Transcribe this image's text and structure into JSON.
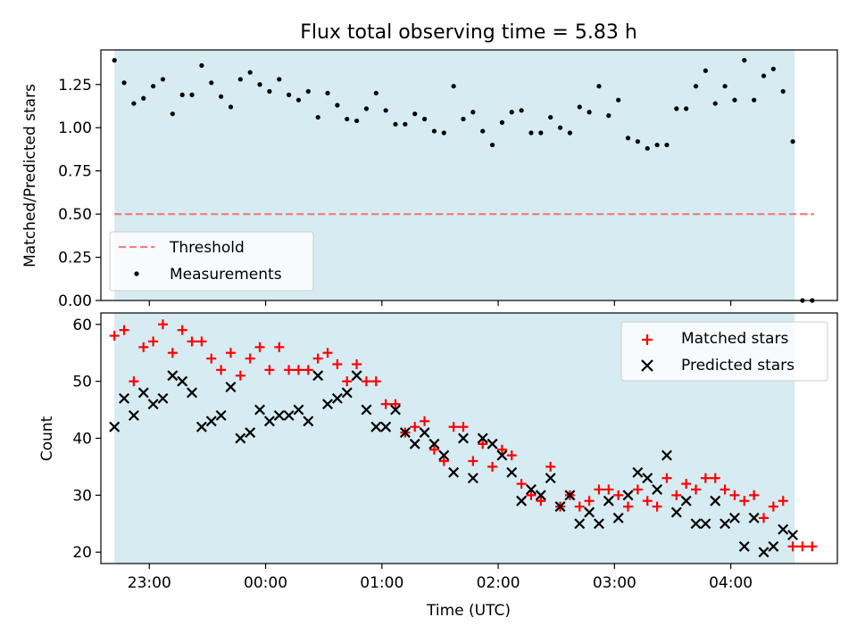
{
  "title": "Flux total observing time = 5.83 h",
  "chart_data": [
    {
      "type": "scatter",
      "ylabel": "Matched/Predicted stars",
      "xlabel": "",
      "xlim": [
        "22:35",
        "04:55"
      ],
      "ylim": [
        0,
        1.45
      ],
      "yticks": [
        "0.00",
        "0.25",
        "0.50",
        "0.75",
        "1.00",
        "1.25"
      ],
      "shaded_interval": [
        "22:42",
        "04:33"
      ],
      "threshold": {
        "name": "Threshold",
        "y": 0.5,
        "x_start": "22:42",
        "x_end": "04:43",
        "color": "#f28080"
      },
      "legend_position": "lower-left",
      "series": [
        {
          "name": "Measurements",
          "marker": "dot",
          "color": "#000000",
          "x": [
            "22:42",
            "22:47",
            "22:52",
            "22:57",
            "23:02",
            "23:07",
            "23:12",
            "23:17",
            "23:22",
            "23:27",
            "23:32",
            "23:37",
            "23:42",
            "23:47",
            "23:52",
            "23:57",
            "00:02",
            "00:07",
            "00:12",
            "00:17",
            "00:22",
            "00:27",
            "00:32",
            "00:37",
            "00:42",
            "00:47",
            "00:52",
            "00:57",
            "01:02",
            "01:07",
            "01:12",
            "01:17",
            "01:22",
            "01:27",
            "01:32",
            "01:37",
            "01:42",
            "01:47",
            "01:52",
            "01:57",
            "02:02",
            "02:07",
            "02:12",
            "02:17",
            "02:22",
            "02:27",
            "02:32",
            "02:37",
            "02:42",
            "02:47",
            "02:52",
            "02:57",
            "03:02",
            "03:07",
            "03:12",
            "03:17",
            "03:22",
            "03:27",
            "03:32",
            "03:37",
            "03:42",
            "03:47",
            "03:52",
            "03:57",
            "04:02",
            "04:07",
            "04:12",
            "04:17",
            "04:22",
            "04:27",
            "04:32",
            "04:37",
            "04:42"
          ],
          "y": [
            1.39,
            1.26,
            1.14,
            1.17,
            1.24,
            1.28,
            1.08,
            1.19,
            1.19,
            1.36,
            1.26,
            1.18,
            1.12,
            1.28,
            1.32,
            1.25,
            1.21,
            1.28,
            1.19,
            1.16,
            1.21,
            1.06,
            1.2,
            1.13,
            1.05,
            1.04,
            1.11,
            1.2,
            1.1,
            1.02,
            1.02,
            1.08,
            1.05,
            0.98,
            0.97,
            1.24,
            1.05,
            1.09,
            0.98,
            0.9,
            1.03,
            1.09,
            1.1,
            0.97,
            0.97,
            1.06,
            1.0,
            0.97,
            1.12,
            1.09,
            1.24,
            1.07,
            1.16,
            0.94,
            0.92,
            0.88,
            0.9,
            0.9,
            1.11,
            1.11,
            1.24,
            1.33,
            1.14,
            1.24,
            1.16,
            1.39,
            1.16,
            1.3,
            1.34,
            1.21,
            0.92,
            0.0,
            0.0
          ]
        }
      ]
    },
    {
      "type": "scatter",
      "ylabel": "Count",
      "xlabel": "Time (UTC)",
      "xlim": [
        "22:35",
        "04:55"
      ],
      "ylim": [
        18,
        62
      ],
      "yticks": [
        "20",
        "30",
        "40",
        "50",
        "60"
      ],
      "xticks": [
        "23:00",
        "00:00",
        "01:00",
        "02:00",
        "03:00",
        "04:00"
      ],
      "shaded_interval": [
        "22:42",
        "04:33"
      ],
      "legend_position": "upper-right",
      "series": [
        {
          "name": "Matched stars",
          "marker": "plus",
          "color": "#ff0000",
          "x": [
            "22:42",
            "22:47",
            "22:52",
            "22:57",
            "23:02",
            "23:07",
            "23:12",
            "23:17",
            "23:22",
            "23:27",
            "23:32",
            "23:37",
            "23:42",
            "23:47",
            "23:52",
            "23:57",
            "00:02",
            "00:07",
            "00:12",
            "00:17",
            "00:22",
            "00:27",
            "00:32",
            "00:37",
            "00:42",
            "00:47",
            "00:52",
            "00:57",
            "01:02",
            "01:07",
            "01:12",
            "01:17",
            "01:22",
            "01:27",
            "01:32",
            "01:37",
            "01:42",
            "01:47",
            "01:52",
            "01:57",
            "02:02",
            "02:07",
            "02:12",
            "02:17",
            "02:22",
            "02:27",
            "02:32",
            "02:37",
            "02:42",
            "02:47",
            "02:52",
            "02:57",
            "03:02",
            "03:07",
            "03:12",
            "03:17",
            "03:22",
            "03:27",
            "03:32",
            "03:37",
            "03:42",
            "03:47",
            "03:52",
            "03:57",
            "04:02",
            "04:07",
            "04:12",
            "04:17",
            "04:22",
            "04:27",
            "04:32",
            "04:37",
            "04:42"
          ],
          "y": [
            58,
            59,
            50,
            56,
            57,
            60,
            55,
            59,
            57,
            57,
            54,
            52,
            55,
            51,
            54,
            56,
            52,
            56,
            52,
            52,
            52,
            54,
            55,
            53,
            50,
            53,
            50,
            50,
            46,
            46,
            41,
            42,
            43,
            38,
            36,
            42,
            42,
            36,
            39,
            35,
            38,
            37,
            32,
            30,
            29,
            35,
            28,
            30,
            28,
            29,
            31,
            31,
            30,
            28,
            31,
            29,
            28,
            33,
            30,
            32,
            31,
            33,
            33,
            31,
            30,
            29,
            30,
            26,
            28,
            29,
            21,
            21,
            21
          ]
        },
        {
          "name": "Predicted stars",
          "marker": "x",
          "color": "#000000",
          "x": [
            "22:42",
            "22:47",
            "22:52",
            "22:57",
            "23:02",
            "23:07",
            "23:12",
            "23:17",
            "23:22",
            "23:27",
            "23:32",
            "23:37",
            "23:42",
            "23:47",
            "23:52",
            "23:57",
            "00:02",
            "00:07",
            "00:12",
            "00:17",
            "00:22",
            "00:27",
            "00:32",
            "00:37",
            "00:42",
            "00:47",
            "00:52",
            "00:57",
            "01:02",
            "01:07",
            "01:12",
            "01:17",
            "01:22",
            "01:27",
            "01:32",
            "01:37",
            "01:42",
            "01:47",
            "01:52",
            "01:57",
            "02:02",
            "02:07",
            "02:12",
            "02:17",
            "02:22",
            "02:27",
            "02:32",
            "02:37",
            "02:42",
            "02:47",
            "02:52",
            "02:57",
            "03:02",
            "03:07",
            "03:12",
            "03:17",
            "03:22",
            "03:27",
            "03:32",
            "03:37",
            "03:42",
            "03:47",
            "03:52",
            "03:57",
            "04:02",
            "04:07",
            "04:12",
            "04:17",
            "04:22",
            "04:27",
            "04:32"
          ],
          "y": [
            42,
            47,
            44,
            48,
            46,
            47,
            51,
            50,
            48,
            42,
            43,
            44,
            49,
            40,
            41,
            45,
            43,
            44,
            44,
            45,
            43,
            51,
            46,
            47,
            48,
            51,
            45,
            42,
            42,
            45,
            41,
            39,
            41,
            39,
            37,
            34,
            40,
            33,
            40,
            39,
            37,
            34,
            29,
            31,
            30,
            33,
            28,
            30,
            25,
            27,
            25,
            29,
            26,
            30,
            34,
            33,
            31,
            37,
            27,
            29,
            25,
            25,
            29,
            25,
            26,
            21,
            26,
            20,
            21,
            24,
            23
          ]
        }
      ]
    }
  ]
}
